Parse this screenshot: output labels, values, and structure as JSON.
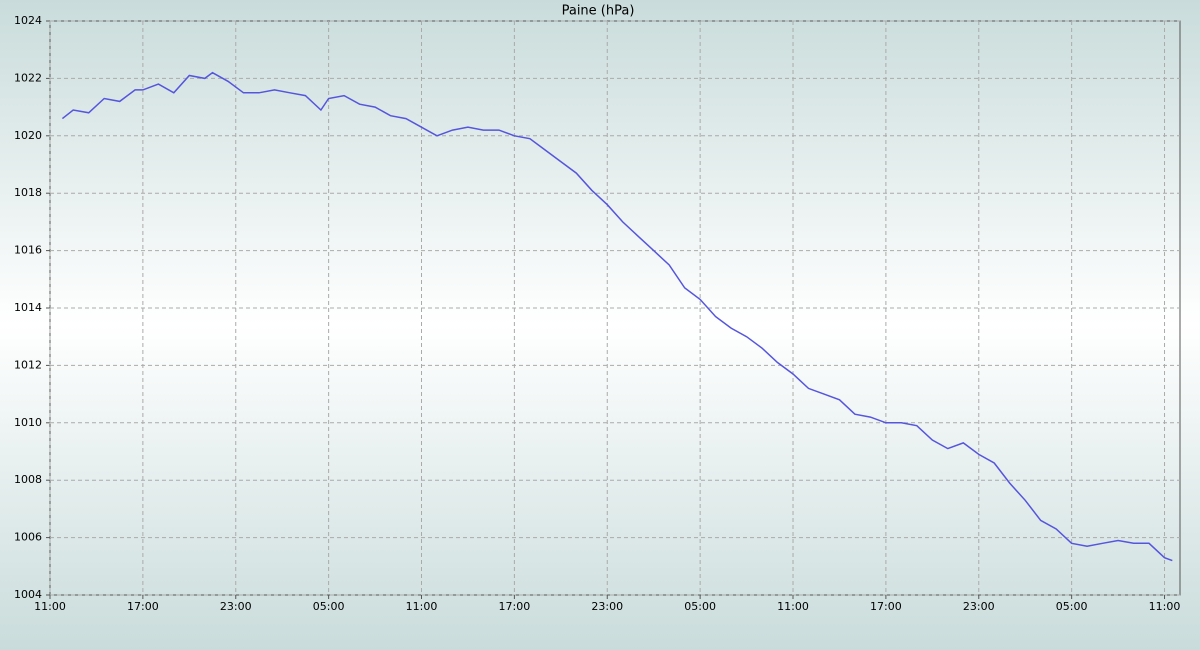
{
  "chart_data": {
    "type": "line",
    "title": "Paine (hPa)",
    "x": [
      0.8,
      1.5,
      2.5,
      3.5,
      4.5,
      5.5,
      6,
      7,
      8,
      9,
      10,
      10.5,
      11.5,
      12.5,
      13.5,
      14.5,
      15.5,
      16.5,
      17.5,
      18,
      19,
      20,
      21,
      22,
      23,
      24,
      25,
      26,
      27,
      28,
      29,
      30,
      31,
      32,
      33,
      34,
      35,
      36,
      37,
      38,
      39,
      40,
      41,
      42,
      43,
      44,
      45,
      46,
      47,
      48,
      49,
      50,
      51,
      52,
      53,
      54,
      55,
      56,
      57,
      58,
      59,
      60,
      61,
      62,
      63,
      64,
      65,
      66,
      67,
      68,
      69,
      70,
      71,
      72,
      72.5
    ],
    "series": [
      {
        "name": "Paine",
        "color": "#5555dd",
        "values": [
          1020.6,
          1020.9,
          1020.8,
          1021.3,
          1021.2,
          1021.6,
          1021.6,
          1021.8,
          1021.5,
          1022.1,
          1022.0,
          1022.2,
          1021.9,
          1021.5,
          1021.5,
          1021.6,
          1021.5,
          1021.4,
          1020.9,
          1021.3,
          1021.4,
          1021.1,
          1021.0,
          1020.7,
          1020.6,
          1020.3,
          1020.0,
          1020.2,
          1020.3,
          1020.2,
          1020.2,
          1020.0,
          1019.9,
          1019.5,
          1019.1,
          1018.7,
          1018.1,
          1017.6,
          1017.0,
          1016.5,
          1016.0,
          1015.5,
          1014.7,
          1014.3,
          1013.7,
          1013.3,
          1013.0,
          1012.6,
          1012.1,
          1011.7,
          1011.2,
          1011.0,
          1010.8,
          1010.3,
          1010.2,
          1010.0,
          1010.0,
          1009.9,
          1009.4,
          1009.1,
          1009.3,
          1008.9,
          1008.6,
          1007.9,
          1007.3,
          1006.6,
          1006.3,
          1005.8,
          1005.7,
          1005.8,
          1005.9,
          1005.8,
          1005.8,
          1005.3,
          1005.2
        ]
      }
    ],
    "xlim": [
      0,
      73
    ],
    "xticks": [
      {
        "value": 0,
        "label": "11:00"
      },
      {
        "value": 6,
        "label": "17:00"
      },
      {
        "value": 12,
        "label": "23:00"
      },
      {
        "value": 18,
        "label": "05:00"
      },
      {
        "value": 24,
        "label": "11:00"
      },
      {
        "value": 30,
        "label": "17:00"
      },
      {
        "value": 36,
        "label": "23:00"
      },
      {
        "value": 42,
        "label": "05:00"
      },
      {
        "value": 48,
        "label": "11:00"
      },
      {
        "value": 54,
        "label": "17:00"
      },
      {
        "value": 60,
        "label": "23:00"
      },
      {
        "value": 66,
        "label": "05:00"
      },
      {
        "value": 72,
        "label": "11:00"
      }
    ],
    "ylim": [
      1004,
      1024
    ],
    "yticks": [
      1004,
      1006,
      1008,
      1010,
      1012,
      1014,
      1016,
      1018,
      1020,
      1022,
      1024
    ],
    "grid": true
  }
}
